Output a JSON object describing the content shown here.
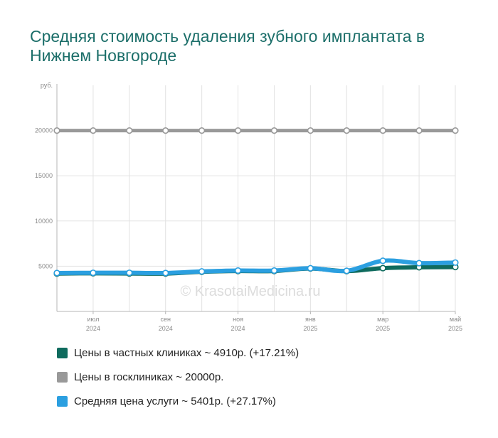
{
  "chart_data": {
    "type": "line",
    "title": "Средняя стоимость удаления зубного имплантата в Нижнем Новгороде",
    "ylabel": "руб.",
    "ylim": [
      0,
      25000
    ],
    "yticks": [
      "20000",
      "15000",
      "10000",
      "5000"
    ],
    "ytick_values": [
      20000,
      15000,
      10000,
      5000
    ],
    "x_count": 12,
    "xticks": [
      {
        "index": 1,
        "month": "июл",
        "year": "2024"
      },
      {
        "index": 3,
        "month": "сен",
        "year": "2024"
      },
      {
        "index": 5,
        "month": "ноя",
        "year": "2024"
      },
      {
        "index": 7,
        "month": "янв",
        "year": "2025"
      },
      {
        "index": 9,
        "month": "мар",
        "year": "2025"
      },
      {
        "index": 11,
        "month": "май",
        "year": "2025"
      }
    ],
    "grid": true,
    "legend_position": "bottom",
    "watermark": "© KrasotaiMedicina.ru",
    "series": [
      {
        "name": "Цены в госклиниках ~ 20000р.",
        "color": "#999999",
        "values": [
          20000,
          20000,
          20000,
          20000,
          20000,
          20000,
          20000,
          20000,
          20000,
          20000,
          20000,
          20000
        ]
      },
      {
        "name": "Цены в частных клиниках ~ 4910р. (+17.21%)",
        "color": "#0f6b5e",
        "values": [
          4190,
          4220,
          4200,
          4190,
          4380,
          4470,
          4470,
          4750,
          4460,
          4790,
          4880,
          4910
        ]
      },
      {
        "name": "Средняя цена услуги ~ 5401р. (+27.17%)",
        "color": "#2b9fe0",
        "values": [
          4250,
          4270,
          4270,
          4250,
          4420,
          4520,
          4520,
          4780,
          4490,
          5600,
          5340,
          5401
        ]
      }
    ]
  },
  "legend": {
    "private": "Цены в частных клиниках ~ 4910р. (+17.21%)",
    "public": "Цены в госклиниках ~ 20000р.",
    "average": "Средняя цена услуги ~ 5401р. (+27.17%)"
  }
}
